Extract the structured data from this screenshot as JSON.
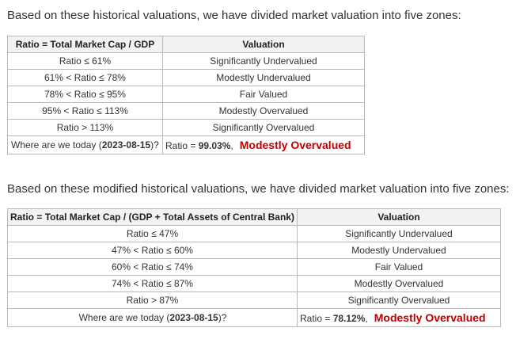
{
  "section1": {
    "intro": "Based on these historical valuations, we have divided market valuation into five zones:",
    "headers": [
      "Ratio = Total Market Cap / GDP",
      "Valuation"
    ],
    "rows": [
      [
        "Ratio ≤ 61%",
        "Significantly Undervalued"
      ],
      [
        "61% < Ratio ≤ 78%",
        "Modestly Undervalued"
      ],
      [
        "78% < Ratio ≤ 95%",
        "Fair Valued"
      ],
      [
        "95% < Ratio ≤ 113%",
        "Modestly Overvalued"
      ],
      [
        "Ratio > 113%",
        "Significantly Overvalued"
      ]
    ],
    "today": {
      "label_prefix": "Where are we today (",
      "date": "2023-08-15",
      "label_suffix": ")?",
      "ratio_prefix": "Ratio = ",
      "ratio_value": "99.03%",
      "ratio_suffix": ",",
      "verdict": "Modestly Overvalued"
    }
  },
  "section2": {
    "intro": "Based on these modified historical valuations, we have divided market valuation into five zones:",
    "headers": [
      "Ratio = Total Market Cap / (GDP + Total Assets of Central Bank)",
      "Valuation"
    ],
    "rows": [
      [
        "Ratio ≤ 47%",
        "Significantly Undervalued"
      ],
      [
        "47% < Ratio ≤ 60%",
        "Modestly Undervalued"
      ],
      [
        "60% < Ratio ≤ 74%",
        "Fair Valued"
      ],
      [
        "74% < Ratio ≤ 87%",
        "Modestly Overvalued"
      ],
      [
        "Ratio > 87%",
        "Significantly Overvalued"
      ]
    ],
    "today": {
      "label_prefix": "Where are we today (",
      "date": "2023-08-15",
      "label_suffix": ")?",
      "ratio_prefix": "Ratio = ",
      "ratio_value": "78.12%",
      "ratio_suffix": ",",
      "verdict": "Modestly Overvalued"
    }
  },
  "colors": {
    "verdict": "#c00000",
    "header_bg": "#f2f2f2",
    "border": "#b9b9b9",
    "text": "#333333"
  }
}
